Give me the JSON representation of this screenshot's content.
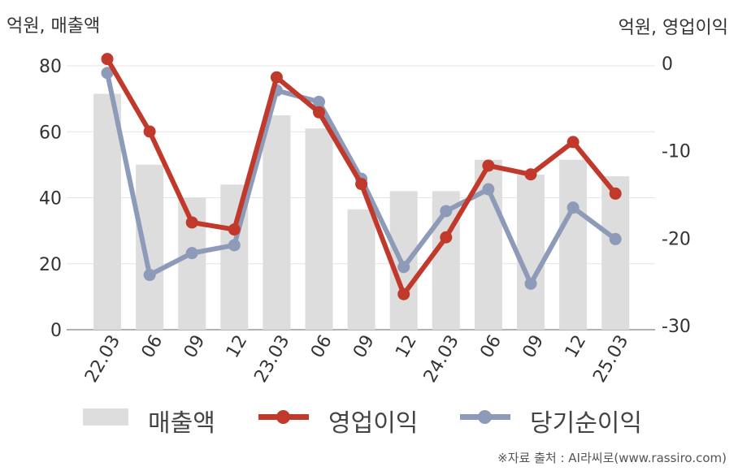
{
  "chart_data": {
    "type": "bar+line",
    "left_axis_title": "억원, 매출액",
    "right_axis_title": "억원, 영업이익",
    "categories": [
      "22.03",
      "06",
      "09",
      "12",
      "23.03",
      "06",
      "09",
      "12",
      "24.03",
      "06",
      "09",
      "12",
      "25.03"
    ],
    "left_ylim": [
      0,
      80
    ],
    "left_ticks": [
      0,
      20,
      40,
      60,
      80
    ],
    "right_ylim": [
      -30,
      0
    ],
    "right_ticks": [
      0,
      -10,
      -20,
      -30
    ],
    "grid": true,
    "legend_position": "bottom",
    "series": [
      {
        "name": "매출액",
        "type": "bar",
        "axis": "left",
        "color": "#dddddd",
        "values": [
          71.5,
          50,
          40,
          44,
          65,
          61,
          36.5,
          42,
          42,
          51.5,
          47,
          51.5,
          46.5
        ]
      },
      {
        "name": "영업이익",
        "type": "line",
        "axis": "right",
        "color": "#c0392b",
        "values": [
          0.5,
          -7.8,
          -18.2,
          -19.0,
          -1.6,
          -5.6,
          -13.8,
          -26.4,
          -19.9,
          -11.7,
          -12.7,
          -9.0,
          -14.9
        ]
      },
      {
        "name": "당기순이익",
        "type": "line",
        "axis": "right",
        "color": "#8e9bb8",
        "values": [
          -1.1,
          -24.2,
          -21.7,
          -20.8,
          -3.1,
          -4.4,
          -13.2,
          -23.3,
          -16.9,
          -14.4,
          -25.2,
          -16.5,
          -20.1
        ]
      }
    ]
  },
  "source": "※자료 출처 : AI라씨로(www.rassiro.com)"
}
